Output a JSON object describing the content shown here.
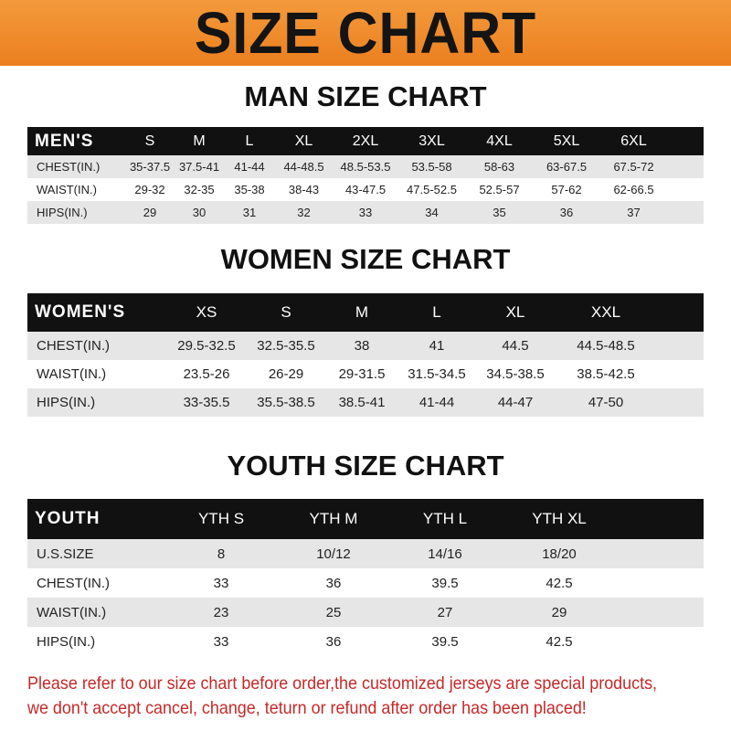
{
  "title": "SIZE CHART",
  "men": {
    "title": "MAN SIZE CHART",
    "header": [
      "MEN'S",
      "S",
      "M",
      "L",
      "XL",
      "2XL",
      "3XL",
      "4XL",
      "5XL",
      "6XL"
    ],
    "rows": [
      [
        "CHEST(IN.)",
        "35-37.5",
        "37.5-41",
        "41-44",
        "44-48.5",
        "48.5-53.5",
        "53.5-58",
        "58-63",
        "63-67.5",
        "67.5-72"
      ],
      [
        "WAIST(IN.)",
        "29-32",
        "32-35",
        "35-38",
        "38-43",
        "43-47.5",
        "47.5-52.5",
        "52.5-57",
        "57-62",
        "62-66.5"
      ],
      [
        "HIPS(IN.)",
        "29",
        "30",
        "31",
        "32",
        "33",
        "34",
        "35",
        "36",
        "37"
      ]
    ]
  },
  "women": {
    "title": "WOMEN SIZE CHART",
    "header": [
      "WOMEN'S",
      "XS",
      "S",
      "M",
      "L",
      "XL",
      "XXL"
    ],
    "rows": [
      [
        "CHEST(IN.)",
        "29.5-32.5",
        "32.5-35.5",
        "38",
        "41",
        "44.5",
        "44.5-48.5"
      ],
      [
        "WAIST(IN.)",
        "23.5-26",
        "26-29",
        "29-31.5",
        "31.5-34.5",
        "34.5-38.5",
        "38.5-42.5"
      ],
      [
        "HIPS(IN.)",
        "33-35.5",
        "35.5-38.5",
        "38.5-41",
        "41-44",
        "44-47",
        "47-50"
      ]
    ]
  },
  "youth": {
    "title": "YOUTH SIZE CHART",
    "header": [
      "YOUTH",
      "YTH S",
      "YTH M",
      "YTH L",
      "YTH XL"
    ],
    "rows": [
      [
        "U.S.SIZE",
        "8",
        "10/12",
        "14/16",
        "18/20"
      ],
      [
        "CHEST(IN.)",
        "33",
        "36",
        "39.5",
        "42.5"
      ],
      [
        "WAIST(IN.)",
        "23",
        "25",
        "27",
        "29"
      ],
      [
        "HIPS(IN.)",
        "33",
        "36",
        "39.5",
        "42.5"
      ]
    ]
  },
  "note": [
    "Please refer to our size chart before order,the customized jerseys are special products,",
    "we don't accept cancel, change, teturn or refund after order has been placed!"
  ],
  "colors": {
    "banner": "#ec7f1f",
    "header_bg": "#111111",
    "note": "#c62828"
  }
}
